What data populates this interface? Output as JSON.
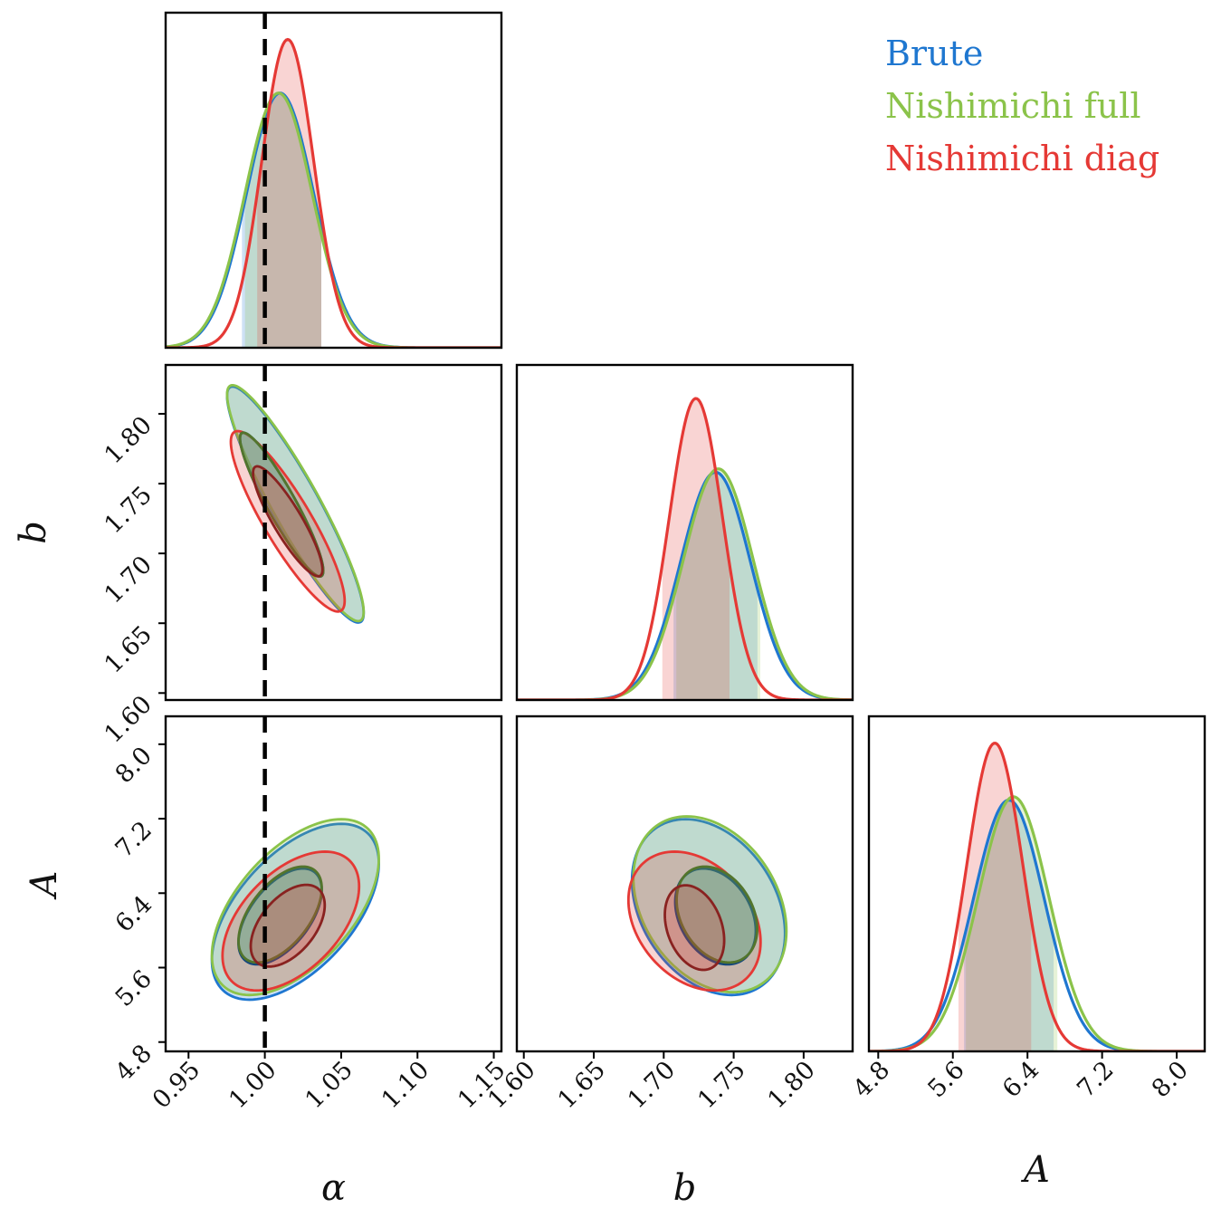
{
  "chart_data": {
    "type": "corner",
    "parameters": [
      {
        "name": "alpha",
        "label": "α",
        "range": [
          0.935,
          1.155
        ],
        "ticks": [
          0.95,
          1.0,
          1.05,
          1.1,
          1.15
        ],
        "tick_labels": [
          "0.95",
          "1.00",
          "1.05",
          "1.10",
          "1.15"
        ]
      },
      {
        "name": "b",
        "label": "b",
        "range": [
          1.595,
          1.835
        ],
        "ticks": [
          1.6,
          1.65,
          1.7,
          1.75,
          1.8
        ],
        "tick_labels": [
          "1.60",
          "1.65",
          "1.70",
          "1.75",
          "1.80"
        ]
      },
      {
        "name": "A",
        "label": "A",
        "range": [
          4.7,
          8.3
        ],
        "ticks": [
          4.8,
          5.6,
          6.4,
          7.2,
          8.0
        ],
        "tick_labels": [
          "4.8",
          "5.6",
          "6.4",
          "7.2",
          "8.0"
        ]
      }
    ],
    "truth": {
      "alpha": 1.0
    },
    "legend": {
      "placement": "top-right"
    },
    "series": [
      {
        "name": "Brute",
        "color": "#1f77d0",
        "marginals": {
          "alpha": {
            "mean": 1.01,
            "sd": 0.022,
            "peak": 0.76,
            "interval": [
              0.985,
              1.037
            ]
          },
          "b": {
            "mean": 1.737,
            "sd": 0.025,
            "peak": 0.68,
            "interval": [
              1.707,
              1.767
            ]
          },
          "A": {
            "mean": 6.2,
            "sd": 0.38,
            "peak": 0.75,
            "interval": [
              5.72,
              6.68
            ]
          }
        },
        "contours": {
          "alpha-b": [
            {
              "level": "1sigma",
              "center": [
                1.011,
                1.735
              ],
              "sd": [
                0.018,
                0.034
              ],
              "rho": -0.92
            },
            {
              "level": "2sigma",
              "center": [
                1.02,
                1.735
              ],
              "sd": [
                0.018,
                0.034
              ],
              "rho": -0.92
            }
          ],
          "alpha-A": [
            {
              "level": "1sigma",
              "center": [
                1.01,
                6.15
              ],
              "sd": [
                0.018,
                0.34
              ],
              "rho": 0.55
            },
            {
              "level": "2sigma",
              "center": [
                1.02,
                6.2
              ],
              "sd": [
                0.022,
                0.38
              ],
              "rho": 0.55
            }
          ],
          "b-A": [
            {
              "level": "1sigma",
              "center": [
                1.737,
                6.15
              ],
              "sd": [
                0.019,
                0.34
              ],
              "rho": -0.3
            },
            {
              "level": "2sigma",
              "center": [
                1.732,
                6.25
              ],
              "sd": [
                0.022,
                0.38
              ],
              "rho": -0.3
            }
          ]
        }
      },
      {
        "name": "Nishimichi full",
        "color": "#8bc34a",
        "marginals": {
          "alpha": {
            "mean": 1.009,
            "sd": 0.022,
            "peak": 0.76,
            "interval": [
              0.987,
              1.037
            ]
          },
          "b": {
            "mean": 1.739,
            "sd": 0.025,
            "peak": 0.69,
            "interval": [
              1.709,
              1.769
            ]
          },
          "A": {
            "mean": 6.25,
            "sd": 0.38,
            "peak": 0.76,
            "interval": [
              5.74,
              6.72
            ]
          }
        },
        "contours": {
          "alpha-b": [
            {
              "level": "1sigma",
              "center": [
                1.011,
                1.735
              ],
              "sd": [
                0.018,
                0.034
              ],
              "rho": -0.92
            },
            {
              "level": "2sigma",
              "center": [
                1.02,
                1.736
              ],
              "sd": [
                0.018,
                0.034
              ],
              "rho": -0.92
            }
          ],
          "alpha-A": [
            {
              "level": "1sigma",
              "center": [
                1.01,
                6.17
              ],
              "sd": [
                0.018,
                0.34
              ],
              "rho": 0.55
            },
            {
              "level": "2sigma",
              "center": [
                1.02,
                6.25
              ],
              "sd": [
                0.022,
                0.38
              ],
              "rho": 0.55
            }
          ],
          "b-A": [
            {
              "level": "1sigma",
              "center": [
                1.738,
                6.17
              ],
              "sd": [
                0.019,
                0.34
              ],
              "rho": -0.3
            },
            {
              "level": "2sigma",
              "center": [
                1.733,
                6.28
              ],
              "sd": [
                0.022,
                0.38
              ],
              "rho": -0.3
            }
          ]
        }
      },
      {
        "name": "Nishimichi diag",
        "color": "#e53935",
        "marginals": {
          "alpha": {
            "mean": 1.015,
            "sd": 0.017,
            "peak": 0.92,
            "interval": [
              0.995,
              1.037
            ]
          },
          "b": {
            "mean": 1.723,
            "sd": 0.019,
            "peak": 0.9,
            "interval": [
              1.699,
              1.747
            ]
          },
          "A": {
            "mean": 6.05,
            "sd": 0.3,
            "peak": 0.92,
            "interval": [
              5.66,
              6.44
            ]
          }
        },
        "contours": {
          "alpha-b": [
            {
              "level": "1sigma",
              "center": [
                1.015,
                1.723
              ],
              "sd": [
                0.015,
                0.026
              ],
              "rho": -0.88
            },
            {
              "level": "2sigma",
              "center": [
                1.015,
                1.723
              ],
              "sd": [
                0.015,
                0.026
              ],
              "rho": -0.88
            }
          ],
          "alpha-A": [
            {
              "level": "1sigma",
              "center": [
                1.015,
                6.05
              ],
              "sd": [
                0.016,
                0.29
              ],
              "rho": 0.5
            },
            {
              "level": "2sigma",
              "center": [
                1.017,
                6.1
              ],
              "sd": [
                0.018,
                0.3
              ],
              "rho": 0.5
            }
          ],
          "b-A": [
            {
              "level": "1sigma",
              "center": [
                1.722,
                6.03
              ],
              "sd": [
                0.014,
                0.3
              ],
              "rho": -0.3
            },
            {
              "level": "2sigma",
              "center": [
                1.722,
                6.1
              ],
              "sd": [
                0.019,
                0.3
              ],
              "rho": -0.3
            }
          ]
        }
      }
    ]
  }
}
